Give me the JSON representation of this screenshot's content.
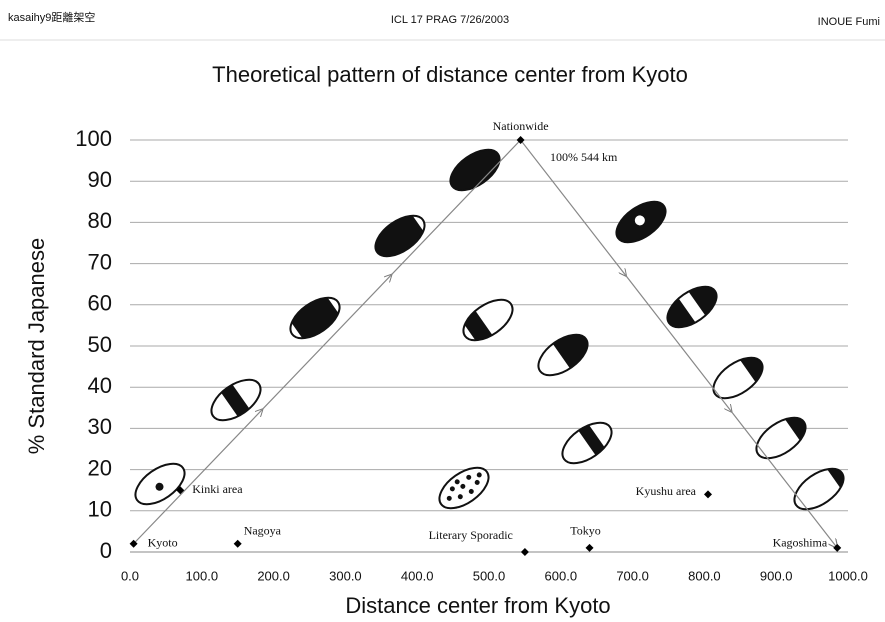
{
  "header": {
    "left": "kasaihy9距離架空",
    "center": "ICL 17 PRAG 7/26/2003",
    "right": "INOUE Fumi"
  },
  "chart_data": {
    "type": "scatter",
    "title": "Theoretical pattern of distance center from Kyoto",
    "x_label": "Distance center from Kyoto",
    "y_label": "% Standard Japanese",
    "annotation": "100% 544 km",
    "points": [
      {
        "label": "Kyoto",
        "x": 5,
        "y": 2
      },
      {
        "label": "Kinki area",
        "x": 70,
        "y": 15
      },
      {
        "label": "Nagoya",
        "x": 150,
        "y": 2
      },
      {
        "label": "Literary Sporadic",
        "x": 550,
        "y": 0
      },
      {
        "label": "Tokyo",
        "x": 640,
        "y": 1
      },
      {
        "label": "Kyushu area",
        "x": 805,
        "y": 14
      },
      {
        "label": "Kagoshima",
        "x": 985,
        "y": 1
      },
      {
        "label": "Nationwide",
        "x": 544,
        "y": 100
      }
    ],
    "color": "#000000",
    "xlim": [
      0,
      1000
    ],
    "xticks": [
      {
        "value": 0,
        "label": "0.0"
      },
      {
        "value": 100,
        "label": "100.0"
      },
      {
        "value": 200,
        "label": "200.0"
      },
      {
        "value": 300,
        "label": "300.0"
      },
      {
        "value": 400,
        "label": "400.0"
      },
      {
        "value": 500,
        "label": "500.0"
      },
      {
        "value": 600,
        "label": "600.0"
      },
      {
        "value": 700,
        "label": "700.0"
      },
      {
        "value": 800,
        "label": "800.0"
      },
      {
        "value": 900,
        "label": "900.0"
      },
      {
        "value": 1000,
        "label": "1000.0"
      }
    ],
    "ylim": [
      0,
      100
    ],
    "yticks": [
      0,
      10,
      20,
      30,
      40,
      50,
      60,
      70,
      80,
      90,
      100
    ],
    "grid": true
  }
}
